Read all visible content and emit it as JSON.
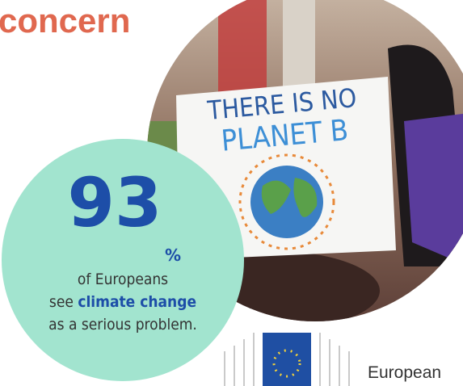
{
  "header": {
    "title": "concern"
  },
  "photo": {
    "sign_line_1": "THERE IS NO",
    "sign_line_2": "PLANET B"
  },
  "stat": {
    "number": "93",
    "unit": "%",
    "line_1": "of Europeans",
    "line_2_prefix": "see",
    "line_2_emphasis": "climate change",
    "line_3": "as a serious problem."
  },
  "logo": {
    "text": "European"
  }
}
